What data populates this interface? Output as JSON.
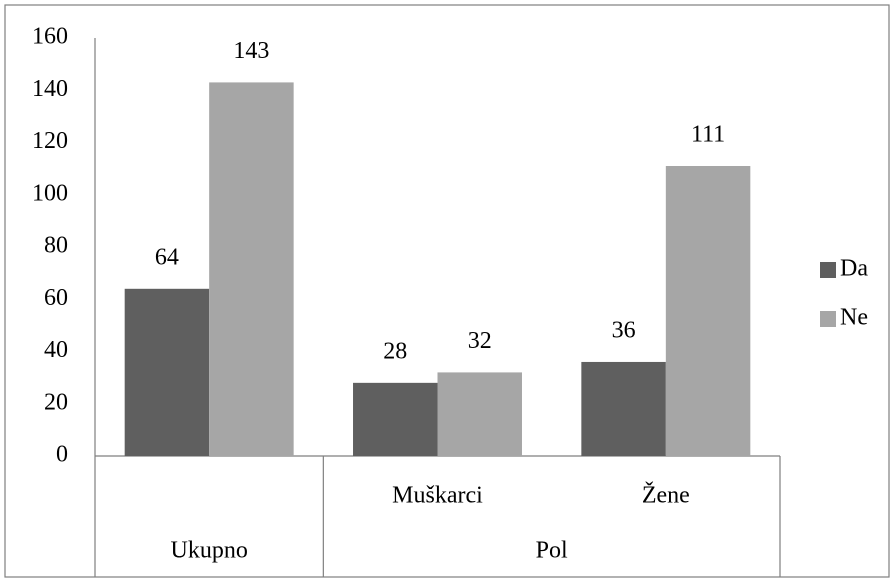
{
  "chart_data": {
    "type": "bar",
    "groups": [
      {
        "name": "Ukupno",
        "categories": [
          null
        ]
      },
      {
        "name": "Pol",
        "categories": [
          "Muškarci",
          "Žene"
        ]
      }
    ],
    "series": [
      {
        "name": "Da",
        "color": "#5f5f5f",
        "values": [
          64,
          28,
          36
        ]
      },
      {
        "name": "Ne",
        "color": "#a6a6a6",
        "values": [
          143,
          32,
          111
        ]
      }
    ],
    "ylim": [
      0,
      160
    ],
    "yticks": [
      0,
      20,
      40,
      60,
      80,
      100,
      120,
      140,
      160
    ],
    "grid": false,
    "legend": "right",
    "data_labels": true
  }
}
